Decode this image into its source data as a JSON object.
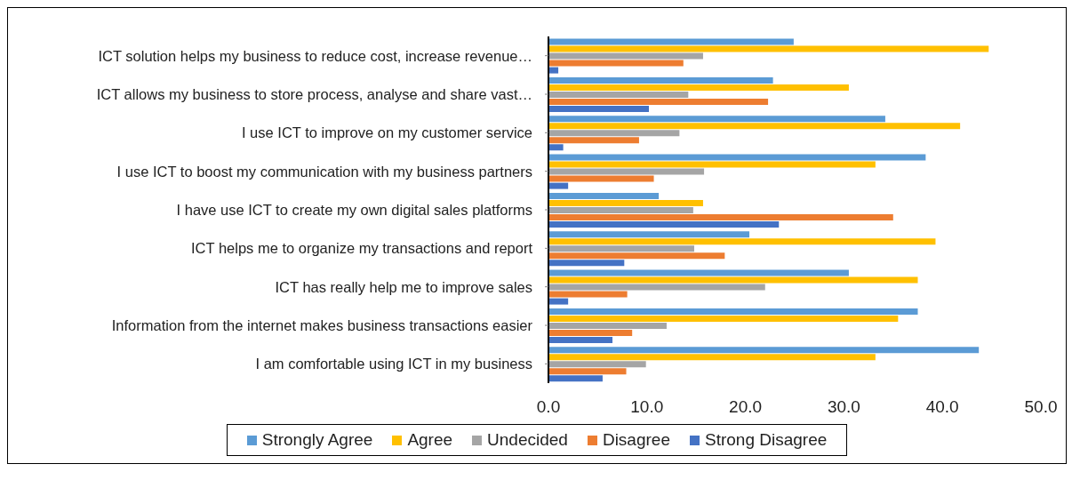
{
  "chart_data": {
    "type": "bar",
    "orientation": "horizontal",
    "categories": [
      "ICT solution helps my business to reduce cost, increase revenue…",
      "ICT allows my business to store process, analyse and share vast…",
      "I use ICT to improve on my customer service",
      "I use ICT to boost my communication with my business partners",
      "I have use ICT to create my own digital sales platforms",
      "ICT helps me to organize my transactions and report",
      "ICT has really help me to improve sales",
      "Information from the internet makes business transactions easier",
      "I am comfortable using ICT in my business"
    ],
    "series": [
      {
        "name": "Strongly Agree",
        "color": "#5b9bd5",
        "values": [
          24.9,
          22.8,
          34.2,
          38.3,
          11.2,
          20.4,
          30.5,
          37.5,
          43.7
        ]
      },
      {
        "name": "Agree",
        "color": "#ffc000",
        "values": [
          44.7,
          30.5,
          41.8,
          33.2,
          15.7,
          39.3,
          37.5,
          35.5,
          33.2
        ]
      },
      {
        "name": "Undecided",
        "color": "#a5a5a5",
        "values": [
          15.7,
          14.2,
          13.3,
          15.8,
          14.7,
          14.8,
          22.0,
          12.0,
          9.9
        ]
      },
      {
        "name": "Disagree",
        "color": "#ed7d31",
        "values": [
          13.7,
          22.3,
          9.2,
          10.7,
          35.0,
          17.9,
          8.0,
          8.5,
          7.9
        ]
      },
      {
        "name": "Strong Disagree",
        "color": "#4472c4",
        "values": [
          1.0,
          10.2,
          1.5,
          2.0,
          23.4,
          7.7,
          2.0,
          6.5,
          5.5
        ]
      }
    ],
    "xlim": [
      0,
      50
    ],
    "xticks": [
      {
        "value": 0,
        "label": "0.0"
      },
      {
        "value": 10,
        "label": "10.0"
      },
      {
        "value": 20,
        "label": "20.0"
      },
      {
        "value": 30,
        "label": "30.0"
      },
      {
        "value": 40,
        "label": "40.0"
      },
      {
        "value": 50,
        "label": "50.0"
      }
    ],
    "grid": false,
    "legend": "bottom"
  }
}
